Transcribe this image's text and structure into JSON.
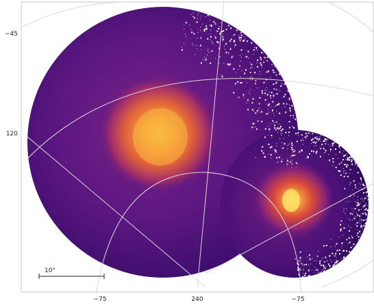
{
  "image": {
    "description_free": true,
    "colormap": "inferno",
    "colors": {
      "background": "#ffffff",
      "field_dark": "#3d0d6e",
      "field_mid": "#6a1a7d",
      "emission_mid": "#d94a3b",
      "emission_bright": "#f7a13a",
      "emission_peak": "#fde26a",
      "noise_speck": "#ffffff",
      "grid": "#d9d9d9"
    }
  },
  "axes": {
    "left_ticks": [
      "−45",
      "120"
    ],
    "bottom_ticks": [
      "−75",
      "240",
      "−75"
    ]
  },
  "scale_bar": {
    "label": "10°"
  }
}
